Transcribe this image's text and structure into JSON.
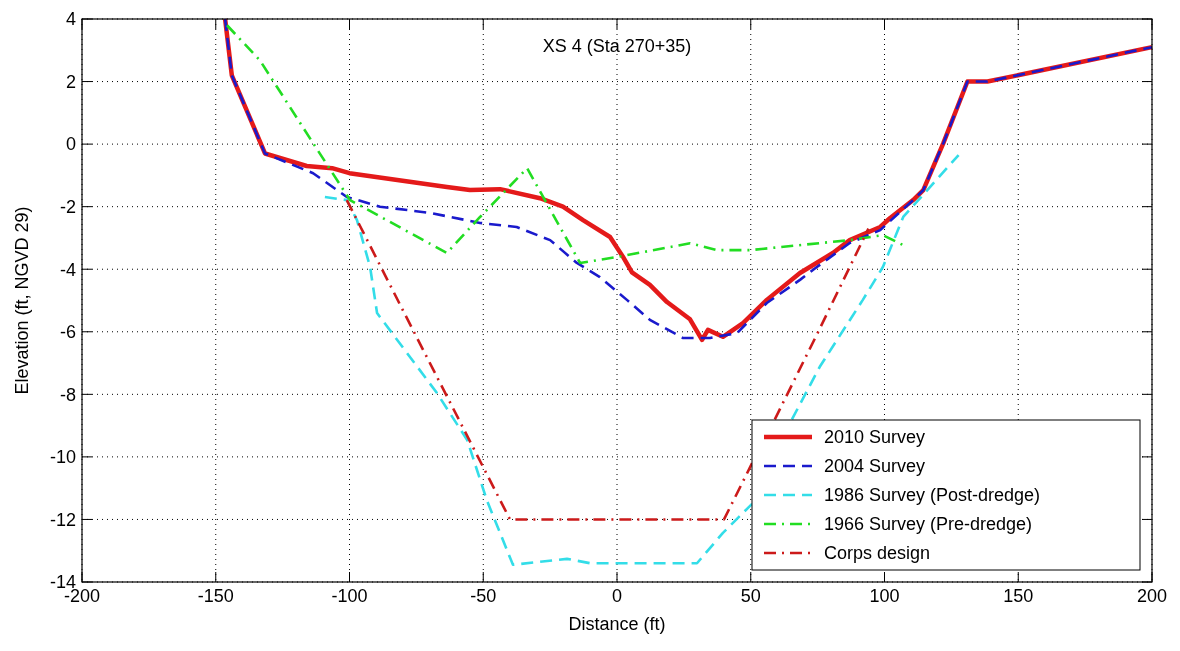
{
  "chart_data": {
    "type": "line",
    "title": "XS 4 (Sta 270+35)",
    "xlabel": "Distance (ft)",
    "ylabel": "Elevation (ft, NGVD 29)",
    "xlim": [
      -200,
      200
    ],
    "xticks": [
      -200,
      -150,
      -100,
      -50,
      0,
      50,
      100,
      150,
      200
    ],
    "ylim": [
      -14,
      4
    ],
    "yticks": [
      -14,
      -12,
      -10,
      -8,
      -6,
      -4,
      -2,
      0,
      2,
      4
    ],
    "grid": true,
    "legend": "bottom right",
    "series": [
      {
        "name": "2010 Survey",
        "color": "#e41a1a",
        "line_style": "solid",
        "x": [
          -146.5,
          -144,
          -131.6,
          -116,
          -106.5,
          -100,
          -63.6,
          -55,
          -43.7,
          -28.8,
          -20.2,
          -12.7,
          -2.6,
          2.2,
          5.6,
          12.3,
          18.7,
          27.3,
          31.8,
          34,
          39.6,
          47.1,
          56,
          68.4,
          80.7,
          87,
          98.4,
          102,
          110.7,
          114.5,
          122,
          131,
          138.5,
          200
        ],
        "values": [
          4,
          2.2,
          -0.3,
          -0.7,
          -0.77,
          -0.93,
          -1.37,
          -1.47,
          -1.44,
          -1.73,
          -2.0,
          -2.43,
          -2.97,
          -3.6,
          -4.1,
          -4.5,
          -5.05,
          -5.6,
          -6.26,
          -5.94,
          -6.16,
          -5.72,
          -4.98,
          -4.12,
          -3.48,
          -3.07,
          -2.65,
          -2.37,
          -1.79,
          -1.47,
          0.03,
          2.0,
          2.0,
          3.1
        ]
      },
      {
        "name": "2004 Survey",
        "color": "#1a1acc",
        "line_style": "dashed",
        "x": [
          -146.5,
          -144,
          -131.6,
          -113.6,
          -101,
          -88.6,
          -69.9,
          -51.2,
          -37.5,
          -25,
          -15,
          -6.4,
          3.7,
          12.3,
          24.7,
          34.8,
          44.9,
          56,
          68.4,
          74.7,
          87,
          98.4,
          110.7,
          114.5,
          122,
          131,
          138.5,
          200
        ],
        "values": [
          4,
          2.2,
          -0.3,
          -0.93,
          -1.69,
          -2.0,
          -2.2,
          -2.52,
          -2.65,
          -3.07,
          -3.8,
          -4.25,
          -4.98,
          -5.62,
          -6.2,
          -6.2,
          -6.04,
          -5.08,
          -4.34,
          -3.93,
          -3.16,
          -2.75,
          -1.79,
          -1.47,
          0.03,
          2.0,
          2.0,
          3.1
        ]
      },
      {
        "name": "1986 Survey (Post-dredge)",
        "color": "#33dde8",
        "line_style": "dashed",
        "x": [
          -109.2,
          -101,
          -97.2,
          -92.3,
          -89.7,
          -67.3,
          -56,
          -48.6,
          -38.9,
          -18.7,
          -10,
          29.9,
          39.6,
          50.5,
          58,
          65.4,
          75.8,
          91.9,
          99.4,
          107,
          127.7
        ],
        "values": [
          -1.69,
          -1.79,
          -2.43,
          -3.93,
          -5.4,
          -7.96,
          -9.46,
          -11.4,
          -13.45,
          -13.26,
          -13.4,
          -13.4,
          -12.43,
          -11.5,
          null,
          -8.8,
          -7.12,
          -4.98,
          -3.93,
          -2.33,
          -0.35
        ]
      },
      {
        "name": "1966 Survey (Pre-dredge)",
        "color": "#22dd22",
        "line_style": "dashdot",
        "x": [
          -145.8,
          -133.5,
          -113.6,
          -99.8,
          -63.6,
          -51.2,
          -33.6,
          -13.8,
          0,
          27.3,
          37.4,
          49.7,
          87,
          99.4,
          107
        ],
        "values": [
          3.8,
          2.68,
          0.03,
          -1.79,
          -3.48,
          -2.33,
          -0.77,
          -3.8,
          -3.61,
          -3.17,
          -3.39,
          -3.39,
          -3.07,
          -2.91,
          -3.23
        ]
      },
      {
        "name": "Corps design",
        "color": "#cc1a1a",
        "line_style": "dashdot",
        "x": [
          -101,
          -76.3,
          -40,
          40,
          50.5,
          55,
          59,
          75.8,
          94
        ],
        "values": [
          -1.79,
          -5.94,
          -12.0,
          -12.0,
          -10.2,
          null,
          -8.8,
          -5.9,
          -2.7
        ]
      }
    ]
  }
}
